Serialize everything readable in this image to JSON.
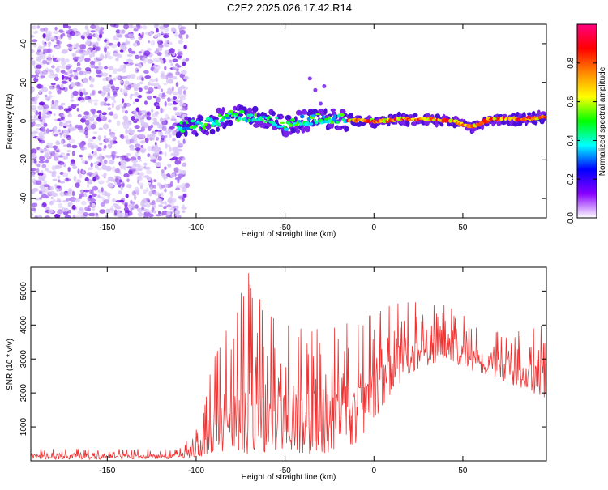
{
  "figure_title": "C2E2.2025.026.17.42.R14",
  "chart_data": [
    {
      "type": "heatmap",
      "title": "C2E2.2025.026.17.42.R14",
      "xlabel": "Height of straight line (km)",
      "ylabel": "Frequency (Hz)",
      "xlim": [
        -193,
        97
      ],
      "ylim": [
        -50,
        50
      ],
      "x_ticks": [
        -150,
        -100,
        -50,
        0,
        50
      ],
      "y_ticks": [
        -40,
        -20,
        0,
        20,
        40
      ],
      "colorbar": {
        "label": "Normalized spectral amplitude",
        "range": [
          0,
          1
        ],
        "ticks": [
          0,
          0.2,
          0.4,
          0.6,
          0.8
        ],
        "tick_labels": [
          "0.0",
          "0.2",
          "0.4",
          "0.6",
          "0.8"
        ],
        "stops": [
          "#ffffff",
          "#8800ff",
          "#0000ff",
          "#00ffff",
          "#00ff00",
          "#ffff00",
          "#ff8800",
          "#ff0000",
          "#ff0080"
        ]
      },
      "features": {
        "noise_region_x": [
          -193,
          -105
        ],
        "signal_trace": [
          {
            "x": -110,
            "y": -3
          },
          {
            "x": -95,
            "y": -2
          },
          {
            "x": -80,
            "y": 3
          },
          {
            "x": -65,
            "y": 2
          },
          {
            "x": -50,
            "y": -2
          },
          {
            "x": -35,
            "y": 1
          },
          {
            "x": -20,
            "y": 1
          },
          {
            "x": 0,
            "y": 0
          },
          {
            "x": 15,
            "y": 1
          },
          {
            "x": 30,
            "y": 1
          },
          {
            "x": 45,
            "y": 0
          },
          {
            "x": 55,
            "y": -3
          },
          {
            "x": 65,
            "y": 1
          },
          {
            "x": 80,
            "y": 1
          },
          {
            "x": 97,
            "y": 2
          }
        ]
      }
    },
    {
      "type": "line",
      "xlabel": "Height of straight line (km)",
      "ylabel": "SNR (10 * v/v)",
      "xlim": [
        -193,
        97
      ],
      "ylim": [
        0,
        5700
      ],
      "x_ticks": [
        -150,
        -100,
        -50,
        0,
        50
      ],
      "y_ticks": [
        1000,
        2000,
        3000,
        4000,
        5000
      ],
      "color": "#ee3333",
      "envelope": [
        {
          "x": -193,
          "low": 50,
          "high": 350
        },
        {
          "x": -110,
          "low": 50,
          "high": 350
        },
        {
          "x": -100,
          "low": 100,
          "high": 900
        },
        {
          "x": -90,
          "low": 200,
          "high": 3000
        },
        {
          "x": -80,
          "low": 300,
          "high": 4200
        },
        {
          "x": -70,
          "low": 200,
          "high": 5600
        },
        {
          "x": -60,
          "low": 150,
          "high": 4300
        },
        {
          "x": -50,
          "low": 200,
          "high": 4000
        },
        {
          "x": -40,
          "low": 200,
          "high": 4200
        },
        {
          "x": -30,
          "low": 200,
          "high": 4000
        },
        {
          "x": -20,
          "low": 300,
          "high": 3900
        },
        {
          "x": -10,
          "low": 500,
          "high": 4200
        },
        {
          "x": 0,
          "low": 1200,
          "high": 4300
        },
        {
          "x": 10,
          "low": 2000,
          "high": 4600
        },
        {
          "x": 20,
          "low": 2600,
          "high": 4700
        },
        {
          "x": 30,
          "low": 2800,
          "high": 4600
        },
        {
          "x": 40,
          "low": 3000,
          "high": 4600
        },
        {
          "x": 50,
          "low": 2700,
          "high": 4300
        },
        {
          "x": 60,
          "low": 2600,
          "high": 3800
        },
        {
          "x": 70,
          "low": 2400,
          "high": 3800
        },
        {
          "x": 80,
          "low": 2200,
          "high": 3800
        },
        {
          "x": 97,
          "low": 1800,
          "high": 4000
        }
      ]
    }
  ]
}
